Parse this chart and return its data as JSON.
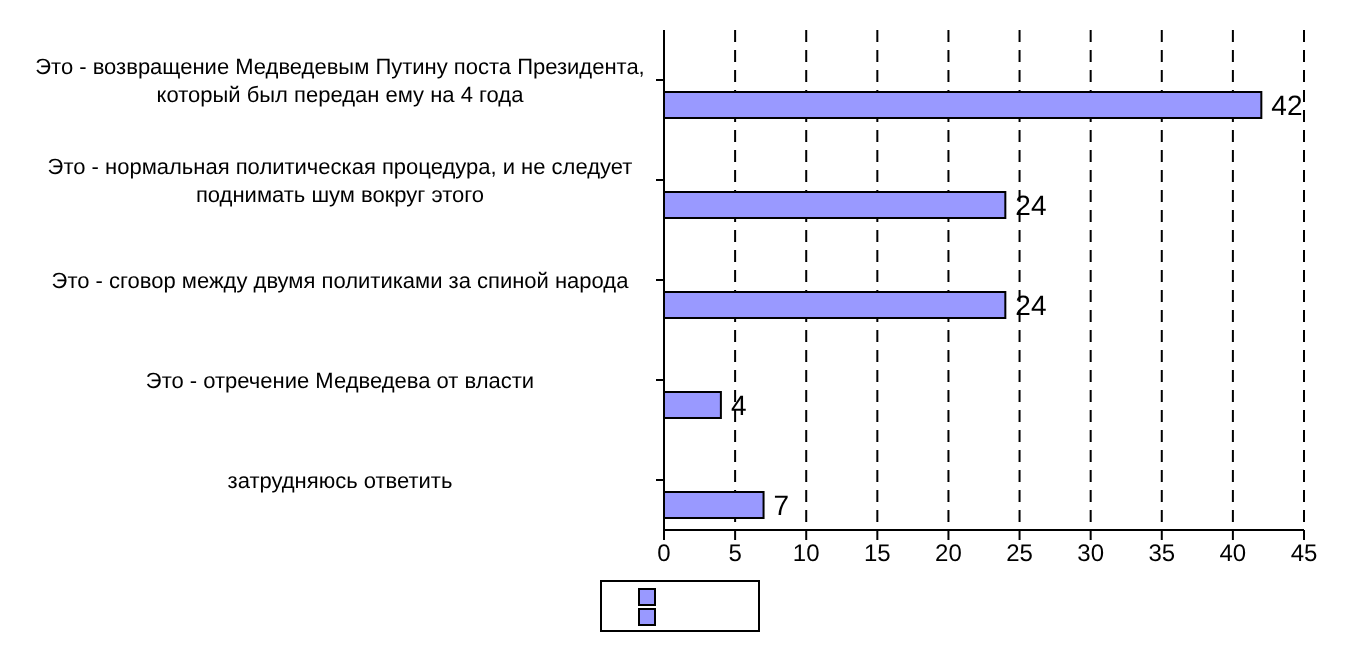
{
  "chart_data": {
    "type": "bar",
    "orientation": "horizontal",
    "categories": [
      "Это - возвращение Медведевым Путину поста Президента, который был передан ему на 4 года",
      "Это - нормальная политическая процедура, и не следует поднимать шум вокруг этого",
      "Это - сговор между двумя политиками за спиной народа",
      "Это - отречение Медведева от власти",
      "затрудняюсь ответить"
    ],
    "series": [
      {
        "color": "#9999ff",
        "values": [
          null,
          null,
          null,
          null,
          null
        ]
      },
      {
        "color": "#9999ff",
        "values": [
          42,
          24,
          24,
          4,
          7
        ]
      }
    ],
    "xlim": [
      0,
      45
    ],
    "xticks": [
      0,
      5,
      10,
      15,
      20,
      25,
      30,
      35,
      40,
      45
    ],
    "grid": "x",
    "data_labels": true
  }
}
